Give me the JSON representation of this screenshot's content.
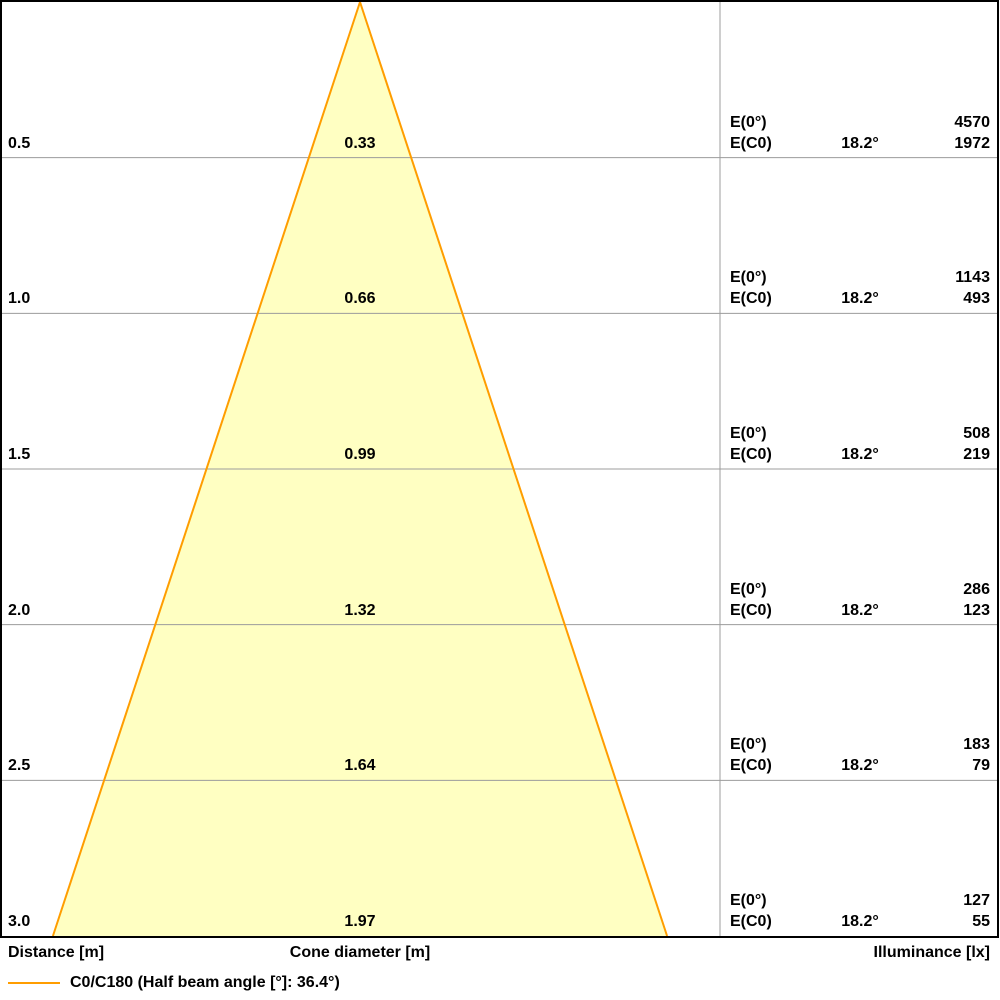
{
  "colors": {
    "background": "#FFFFFF",
    "cone_fill": "#FFFFC2",
    "cone_edge": "#FF9D00",
    "grid": "#9C9C9C",
    "border": "#000000",
    "text": "#000000"
  },
  "chart_data": {
    "type": "area",
    "title": "",
    "description": "Luminaire light cone diagram: cone diameter and illuminance vs distance",
    "half_beam_angle_full_deg": 36.4,
    "half_angle_per_side_deg": 18.2,
    "distance_range_m": [
      0,
      3.0
    ],
    "axis_labels": {
      "distance": "Distance [m]",
      "cone_diameter": "Cone diameter [m]",
      "illuminance": "Illuminance [lx]"
    },
    "row_labels": {
      "e0": "E(0°)",
      "ec0": "E(C0)"
    },
    "rows": [
      {
        "distance_m": "0.5",
        "cone_diameter_m": "0.33",
        "beam_angle": "18.2°",
        "e0_lx": "4570",
        "ec0_lx": "1972"
      },
      {
        "distance_m": "1.0",
        "cone_diameter_m": "0.66",
        "beam_angle": "18.2°",
        "e0_lx": "1143",
        "ec0_lx": "493"
      },
      {
        "distance_m": "1.5",
        "cone_diameter_m": "0.99",
        "beam_angle": "18.2°",
        "e0_lx": "508",
        "ec0_lx": "219"
      },
      {
        "distance_m": "2.0",
        "cone_diameter_m": "1.32",
        "beam_angle": "18.2°",
        "e0_lx": "286",
        "ec0_lx": "123"
      },
      {
        "distance_m": "2.5",
        "cone_diameter_m": "1.64",
        "beam_angle": "18.2°",
        "e0_lx": "183",
        "ec0_lx": "79"
      },
      {
        "distance_m": "3.0",
        "cone_diameter_m": "1.97",
        "beam_angle": "18.2°",
        "e0_lx": "127",
        "ec0_lx": "55"
      }
    ],
    "legend": {
      "label": "C0/C180 (Half beam angle [°]: 36.4°)",
      "line_color": "#FF9D00"
    }
  }
}
